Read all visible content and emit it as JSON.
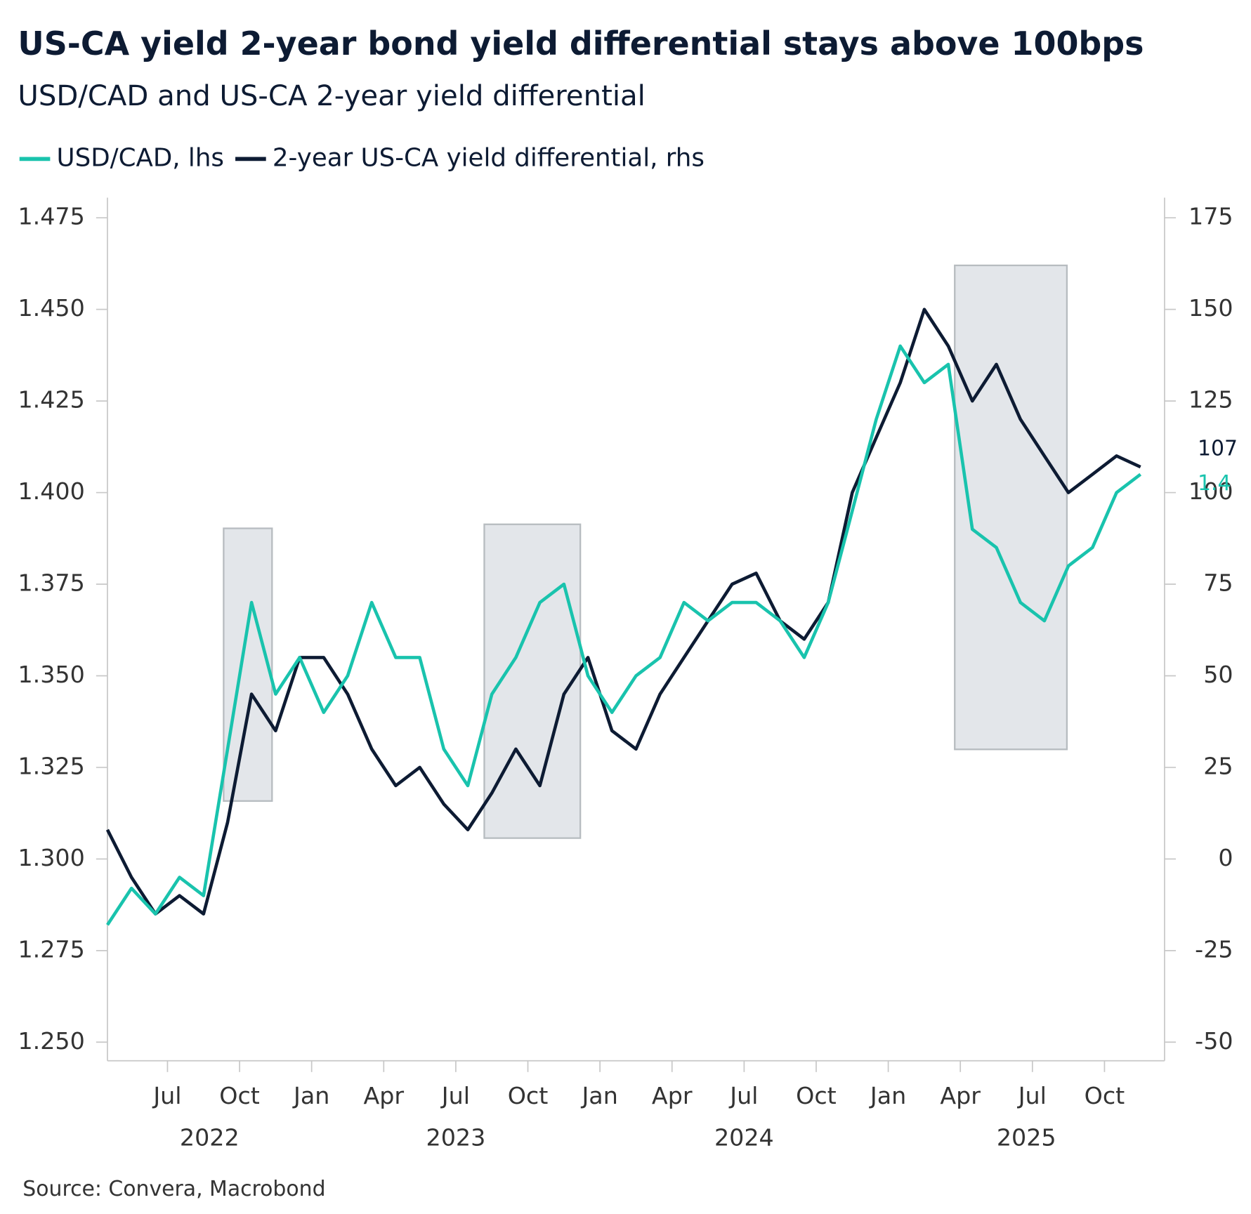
{
  "chart_data": {
    "type": "line",
    "title": "US-CA yield 2-year bond yield differential stays above 100bps",
    "subtitle": "USD/CAD and US-CA 2-year yield differential",
    "source": "Source: Convera, Macrobond",
    "x": [
      "2022-04",
      "2022-05",
      "2022-06",
      "2022-07",
      "2022-08",
      "2022-09",
      "2022-10",
      "2022-11",
      "2022-12",
      "2023-01",
      "2023-02",
      "2023-03",
      "2023-04",
      "2023-05",
      "2023-06",
      "2023-07",
      "2023-08",
      "2023-09",
      "2023-10",
      "2023-11",
      "2023-12",
      "2024-01",
      "2024-02",
      "2024-03",
      "2024-04",
      "2024-05",
      "2024-06",
      "2024-07",
      "2024-08",
      "2024-09",
      "2024-10",
      "2024-11",
      "2024-12",
      "2025-01",
      "2025-02",
      "2025-03",
      "2025-04",
      "2025-05",
      "2025-06",
      "2025-07",
      "2025-08",
      "2025-09",
      "2025-10",
      "2025-11"
    ],
    "xlim": [
      "2022-04",
      "2025-12"
    ],
    "xticks": [
      {
        "value": "2022-07",
        "label": "Jul"
      },
      {
        "value": "2022-10",
        "label": "Oct"
      },
      {
        "value": "2023-01",
        "label": "Jan"
      },
      {
        "value": "2023-04",
        "label": "Apr"
      },
      {
        "value": "2023-07",
        "label": "Jul"
      },
      {
        "value": "2023-10",
        "label": "Oct"
      },
      {
        "value": "2024-01",
        "label": "Jan"
      },
      {
        "value": "2024-04",
        "label": "Apr"
      },
      {
        "value": "2024-07",
        "label": "Jul"
      },
      {
        "value": "2024-10",
        "label": "Oct"
      },
      {
        "value": "2025-01",
        "label": "Jan"
      },
      {
        "value": "2025-04",
        "label": "Apr"
      },
      {
        "value": "2025-07",
        "label": "Jul"
      },
      {
        "value": "2025-10",
        "label": "Oct"
      }
    ],
    "xyears": [
      "2022",
      "2023",
      "2024",
      "2025"
    ],
    "ylim": [
      1.25,
      1.475
    ],
    "yticks": [
      {
        "value": 1.25,
        "label": "1.250"
      },
      {
        "value": 1.275,
        "label": "1.275"
      },
      {
        "value": 1.3,
        "label": "1.300"
      },
      {
        "value": 1.325,
        "label": "1.325"
      },
      {
        "value": 1.35,
        "label": "1.350"
      },
      {
        "value": 1.375,
        "label": "1.375"
      },
      {
        "value": 1.4,
        "label": "1.400"
      },
      {
        "value": 1.425,
        "label": "1.425"
      },
      {
        "value": 1.45,
        "label": "1.450"
      },
      {
        "value": 1.475,
        "label": "1.475"
      }
    ],
    "y2lim": [
      -50,
      175
    ],
    "y2ticks": [
      -50,
      -25,
      0,
      25,
      50,
      75,
      100,
      125,
      150,
      175
    ],
    "series": [
      {
        "name": "USD/CAD, lhs",
        "color": "#19c3ad",
        "axis": "y",
        "last_label": "1.4",
        "values": [
          1.282,
          1.292,
          1.285,
          1.295,
          1.29,
          1.33,
          1.37,
          1.345,
          1.355,
          1.34,
          1.35,
          1.37,
          1.355,
          1.355,
          1.33,
          1.32,
          1.345,
          1.355,
          1.37,
          1.375,
          1.35,
          1.34,
          1.35,
          1.355,
          1.37,
          1.365,
          1.37,
          1.37,
          1.365,
          1.355,
          1.37,
          1.395,
          1.42,
          1.44,
          1.43,
          1.435,
          1.39,
          1.385,
          1.37,
          1.365,
          1.38,
          1.385,
          1.4,
          1.405
        ]
      },
      {
        "name": "2-year US-CA yield differential, rhs",
        "color": "#0d1b33",
        "axis": "y2",
        "last_label": "107",
        "values": [
          8,
          -5,
          -15,
          -10,
          -15,
          10,
          45,
          35,
          55,
          55,
          45,
          30,
          20,
          25,
          15,
          8,
          18,
          30,
          20,
          45,
          55,
          35,
          30,
          45,
          55,
          65,
          75,
          78,
          65,
          60,
          70,
          100,
          115,
          130,
          150,
          140,
          125,
          135,
          120,
          110,
          100,
          105,
          110,
          107
        ]
      }
    ]
  }
}
